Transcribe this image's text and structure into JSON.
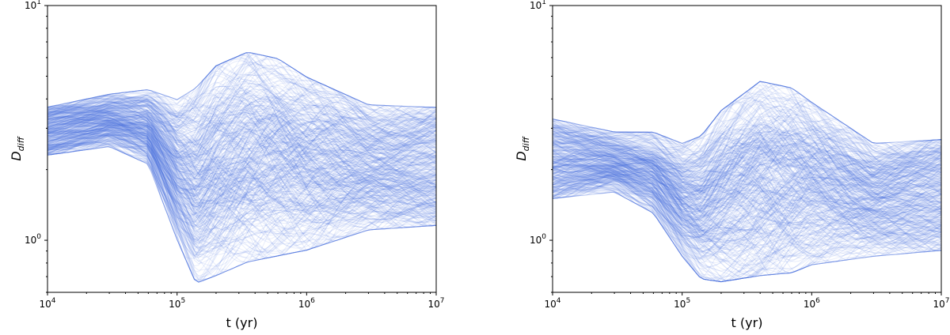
{
  "chart_data": [
    {
      "type": "line",
      "xlabel": "t (yr)",
      "ylabel_main": "D",
      "ylabel_sub": "diff",
      "xscale": "log",
      "yscale": "log",
      "xlim": [
        10000,
        10000000
      ],
      "ylim": [
        0.6,
        10
      ],
      "x_ticks": [
        {
          "base": "10",
          "exp": "4"
        },
        {
          "base": "10",
          "exp": "5"
        },
        {
          "base": "10",
          "exp": "6"
        },
        {
          "base": "10",
          "exp": "7"
        }
      ],
      "y_ticks": [
        {
          "base": "10",
          "exp": "0"
        },
        {
          "base": "10",
          "exp": "1"
        }
      ],
      "grid": false,
      "line_color": "#4169e1",
      "curve_count": 420,
      "envelope": {
        "x": [
          10000,
          30000,
          60000,
          100000,
          140000,
          200000,
          350000,
          600000,
          1000000,
          3000000,
          10000000
        ],
        "upper": [
          3.7,
          4.2,
          4.4,
          4.0,
          4.5,
          5.6,
          6.4,
          6.0,
          5.0,
          3.8,
          3.7
        ],
        "lower": [
          2.3,
          2.5,
          2.1,
          1.0,
          0.65,
          0.7,
          0.8,
          0.85,
          0.9,
          1.1,
          1.15
        ]
      }
    },
    {
      "type": "line",
      "xlabel": "t (yr)",
      "ylabel_main": "D",
      "ylabel_sub": "diff",
      "xscale": "log",
      "yscale": "log",
      "xlim": [
        10000,
        10000000
      ],
      "ylim": [
        0.6,
        10
      ],
      "x_ticks": [
        {
          "base": "10",
          "exp": "4"
        },
        {
          "base": "10",
          "exp": "5"
        },
        {
          "base": "10",
          "exp": "6"
        },
        {
          "base": "10",
          "exp": "7"
        }
      ],
      "y_ticks": [
        {
          "base": "10",
          "exp": "0"
        },
        {
          "base": "10",
          "exp": "1"
        }
      ],
      "grid": false,
      "line_color": "#4169e1",
      "curve_count": 420,
      "envelope": {
        "x": [
          10000,
          30000,
          60000,
          100000,
          140000,
          200000,
          400000,
          700000,
          1000000,
          3000000,
          10000000
        ],
        "upper": [
          3.3,
          2.9,
          2.9,
          2.6,
          2.8,
          3.6,
          4.8,
          4.5,
          3.9,
          2.6,
          2.7
        ],
        "lower": [
          1.5,
          1.6,
          1.3,
          0.85,
          0.68,
          0.66,
          0.7,
          0.72,
          0.78,
          0.85,
          0.9
        ]
      }
    }
  ]
}
